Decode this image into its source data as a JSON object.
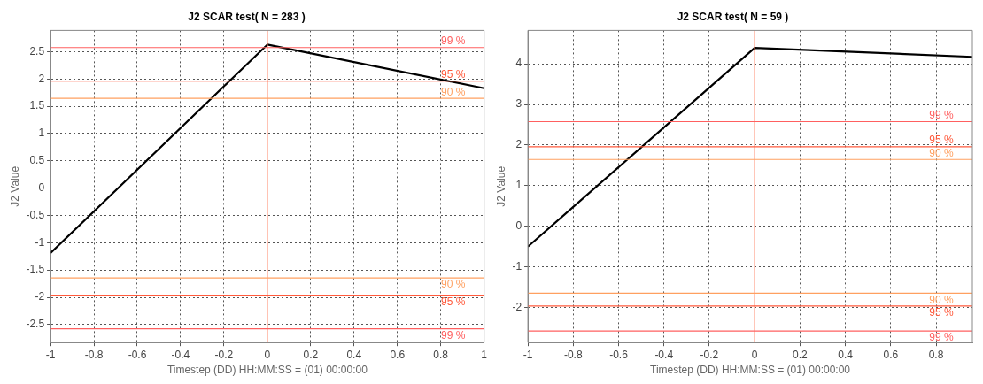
{
  "chart_data": [
    {
      "type": "line",
      "title": "J2 SCAR test( N = 283 )",
      "xlabel": "Timestep (DD) HH:MM:SS = (01) 00:00:00",
      "ylabel": "J2 Value",
      "xlim": [
        -1,
        1
      ],
      "ylim": [
        -2.83,
        2.89
      ],
      "xticks": [
        -1,
        -0.8,
        -0.6,
        -0.4,
        -0.2,
        0,
        0.2,
        0.4,
        0.6,
        0.8,
        1
      ],
      "yticks": [
        -2.5,
        -2,
        -1.5,
        -1,
        -0.5,
        0,
        0.5,
        1,
        1.5,
        2,
        2.5
      ],
      "grid": true,
      "series": [
        {
          "color": "#000000",
          "x": [
            -1,
            0,
            1
          ],
          "values": [
            -1.19,
            2.63,
            1.83
          ]
        }
      ],
      "ref_lines": [
        {
          "axis": "x",
          "value": 0,
          "color": "#ff8060"
        },
        {
          "axis": "y",
          "value": 2.576,
          "color": "#ff6060"
        },
        {
          "axis": "y",
          "value": 1.96,
          "color": "#ff5a3c"
        },
        {
          "axis": "y",
          "value": 1.645,
          "color": "#ffa060"
        },
        {
          "axis": "y",
          "value": -1.645,
          "color": "#ffa060"
        },
        {
          "axis": "y",
          "value": -1.96,
          "color": "#ff5a3c"
        },
        {
          "axis": "y",
          "value": -2.576,
          "color": "#ff6060"
        }
      ],
      "annotations": [
        {
          "text": "99 %",
          "y": 2.576
        },
        {
          "text": "95 %",
          "y": 1.96
        },
        {
          "text": "90 %",
          "y": 1.645
        },
        {
          "text": "90 %",
          "y": -1.645
        },
        {
          "text": "95 %",
          "y": -1.96
        },
        {
          "text": "99 %",
          "y": -2.576
        }
      ]
    },
    {
      "type": "line",
      "title": "J2 SCAR test( N = 59 )",
      "xlabel": "Timestep (DD) HH:MM:SS = (01) 00:00:00",
      "ylabel": "J2 Value",
      "xlim": [
        -1,
        0.96
      ],
      "ylim": [
        -2.86,
        4.82
      ],
      "xticks": [
        -1,
        -0.8,
        -0.6,
        -0.4,
        -0.2,
        0,
        0.2,
        0.4,
        0.6,
        0.8
      ],
      "yticks": [
        -2,
        -1,
        0,
        1,
        2,
        3,
        4
      ],
      "grid": true,
      "series": [
        {
          "color": "#000000",
          "x": [
            -1,
            0,
            0.96
          ],
          "values": [
            -0.5,
            4.39,
            4.17
          ]
        }
      ],
      "ref_lines": [
        {
          "axis": "x",
          "value": 0,
          "color": "#ff8060"
        },
        {
          "axis": "y",
          "value": 2.576,
          "color": "#ff6060"
        },
        {
          "axis": "y",
          "value": 1.96,
          "color": "#ff5a3c"
        },
        {
          "axis": "y",
          "value": 1.645,
          "color": "#ffa060"
        },
        {
          "axis": "y",
          "value": -1.645,
          "color": "#ffa060"
        },
        {
          "axis": "y",
          "value": -1.96,
          "color": "#ff5a3c"
        },
        {
          "axis": "y",
          "value": -2.576,
          "color": "#ff6060"
        }
      ],
      "annotations": [
        {
          "text": "99 %",
          "y": 2.576
        },
        {
          "text": "95 %",
          "y": 1.96
        },
        {
          "text": "90 %",
          "y": 1.645
        },
        {
          "text": "90 %",
          "y": -1.645
        },
        {
          "text": "95 %",
          "y": -1.96
        },
        {
          "text": "99 %",
          "y": -2.576
        }
      ]
    }
  ]
}
